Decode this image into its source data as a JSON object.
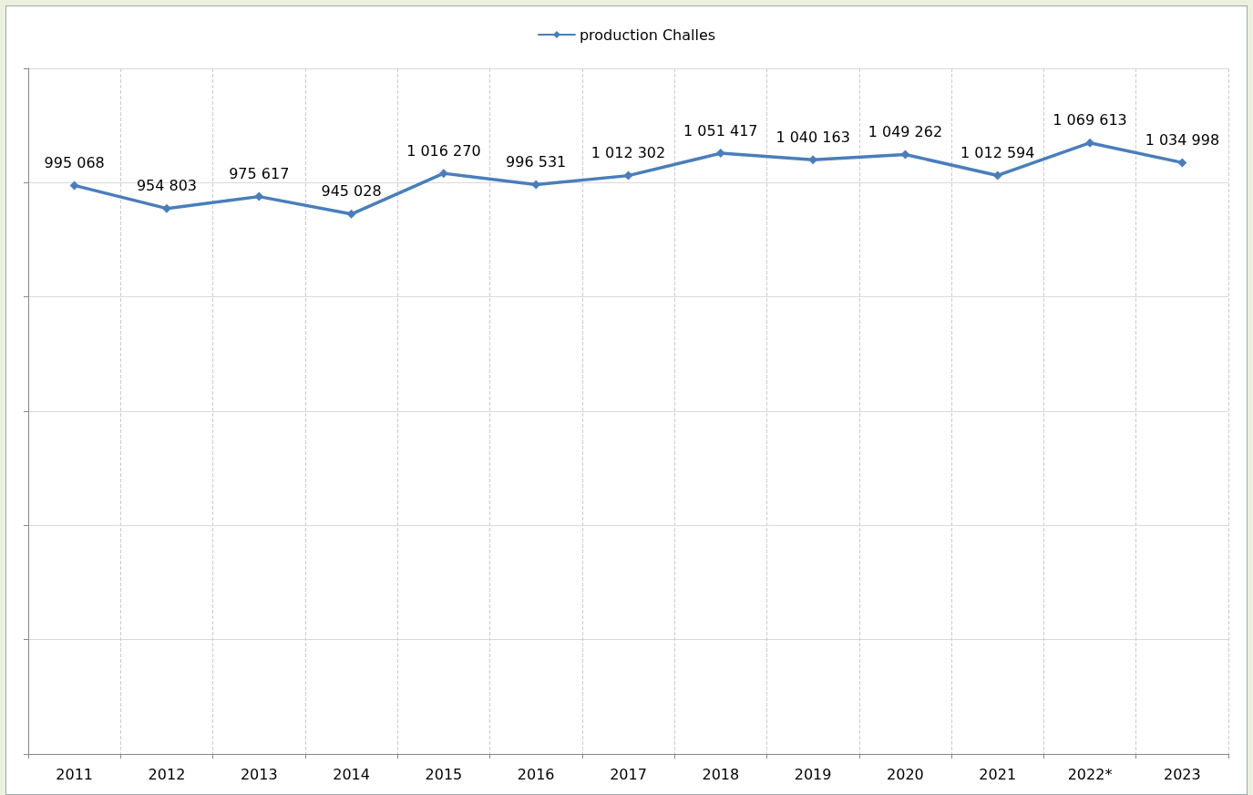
{
  "chart_data": {
    "type": "line",
    "categories": [
      "2011",
      "2012",
      "2013",
      "2014",
      "2015",
      "2016",
      "2017",
      "2018",
      "2019",
      "2020",
      "2021",
      "2022*",
      "2023"
    ],
    "series": [
      {
        "name": "production Challes",
        "color": "#4a7ebb",
        "values": [
          995068,
          954803,
          975617,
          945028,
          1016270,
          996531,
          1012302,
          1051417,
          1040163,
          1049262,
          1012594,
          1069613,
          1034998
        ],
        "value_labels": [
          "995 068",
          "954 803",
          "975 617",
          "945 028",
          "1 016 270",
          "996 531",
          "1 012 302",
          "1 051 417",
          "1 040 163",
          "1 049 262",
          "1 012 594",
          "1 069 613",
          "1 034 998"
        ]
      }
    ],
    "ylim": [
      0,
      1200000
    ],
    "yticks": [
      {
        "value": 0,
        "label": null
      },
      {
        "value": 200000,
        "label": null
      },
      {
        "value": 400000,
        "label": null
      },
      {
        "value": 600000,
        "label": null
      },
      {
        "value": 800000,
        "label": null
      },
      {
        "value": 1000000,
        "label": null
      },
      {
        "value": 1200000,
        "label": null
      }
    ],
    "tick_labels": "x",
    "grid": true,
    "legend": "top",
    "marker": "diamond",
    "line_style": "solid"
  }
}
